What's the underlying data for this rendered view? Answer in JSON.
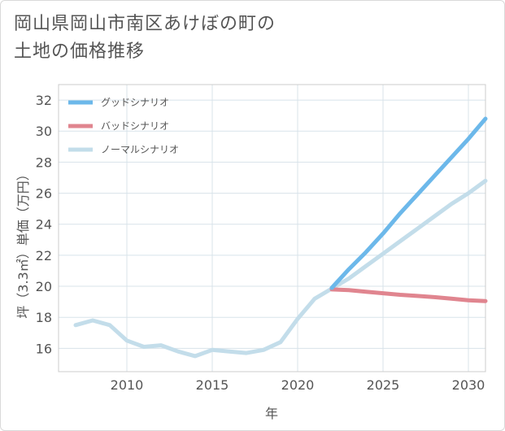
{
  "chart_data": {
    "type": "line",
    "title": [
      "岡山県岡山市南区あけぼの町の",
      "土地の価格推移"
    ],
    "xlabel": "年",
    "ylabel": "坪（3.3㎡）単価（万円）",
    "xlim": [
      2006,
      2031
    ],
    "ylim": [
      14.5,
      33
    ],
    "xticks": [
      2010,
      2015,
      2020,
      2025,
      2030
    ],
    "yticks": [
      16,
      18,
      20,
      22,
      24,
      26,
      28,
      30,
      32
    ],
    "grid": true,
    "legend_position": "top-left",
    "series": [
      {
        "name": "グッドシナリオ",
        "color": "#6cb8ea",
        "x": [
          2022,
          2023,
          2024,
          2025,
          2026,
          2027,
          2028,
          2029,
          2030,
          2031
        ],
        "values": [
          19.9,
          21.1,
          22.2,
          23.4,
          24.7,
          25.9,
          27.1,
          28.3,
          29.5,
          30.8
        ]
      },
      {
        "name": "バッドシナリオ",
        "color": "#e0858f",
        "x": [
          2022,
          2023,
          2024,
          2025,
          2026,
          2027,
          2028,
          2029,
          2030,
          2031
        ],
        "values": [
          19.8,
          19.75,
          19.65,
          19.55,
          19.45,
          19.38,
          19.3,
          19.2,
          19.1,
          19.05
        ]
      },
      {
        "name": "ノーマルシナリオ",
        "color": "#c3ddea",
        "x": [
          2007,
          2008,
          2009,
          2010,
          2011,
          2012,
          2013,
          2014,
          2015,
          2016,
          2017,
          2018,
          2019,
          2020,
          2021,
          2022,
          2023,
          2024,
          2025,
          2026,
          2027,
          2028,
          2029,
          2030,
          2031
        ],
        "values": [
          17.5,
          17.8,
          17.5,
          16.5,
          16.1,
          16.2,
          15.8,
          15.5,
          15.9,
          15.8,
          15.7,
          15.9,
          16.4,
          17.9,
          19.2,
          19.85,
          20.5,
          21.3,
          22.1,
          22.9,
          23.7,
          24.5,
          25.3,
          26.0,
          26.8
        ]
      }
    ]
  }
}
